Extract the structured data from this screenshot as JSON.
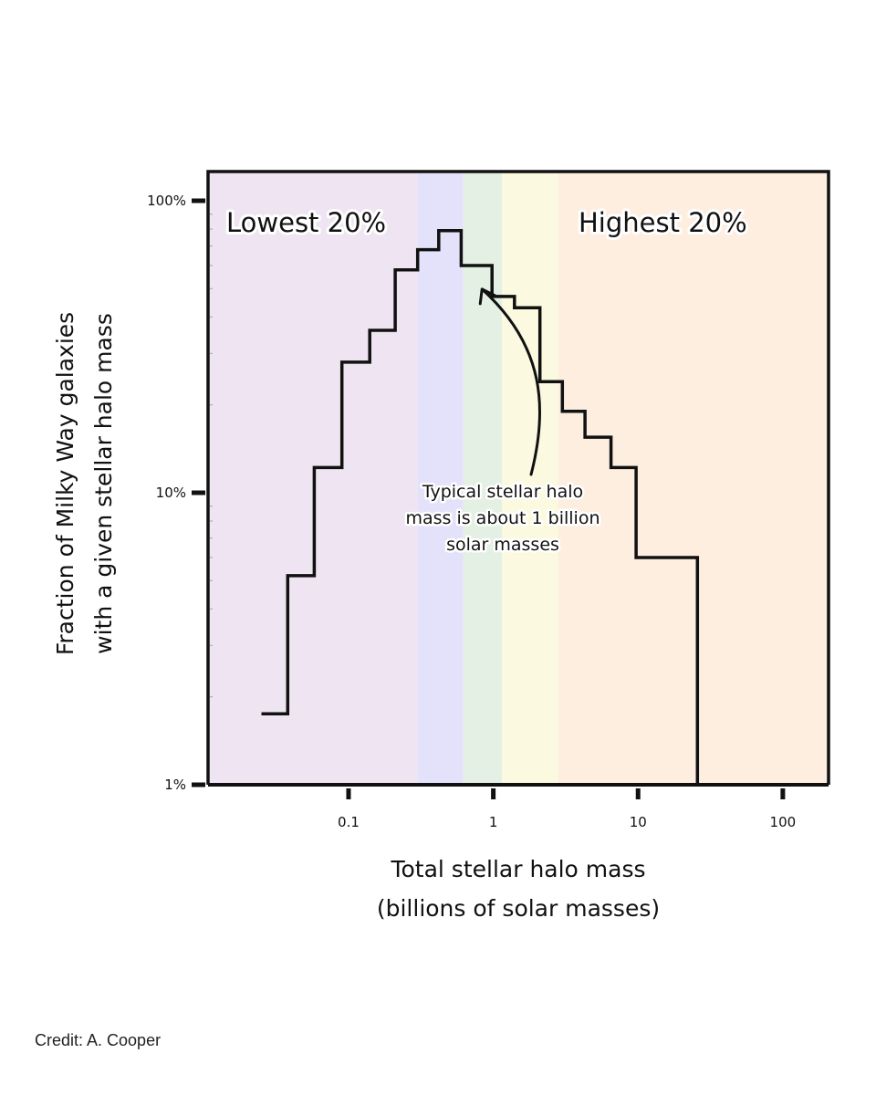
{
  "chart_data": {
    "type": "step",
    "xlabel_lines": [
      "Total stellar halo mass",
      "(billions of solar masses)"
    ],
    "ylabel_lines": [
      "Fraction of Milky Way galaxies",
      "with a given stellar halo mass"
    ],
    "x_scale": "log",
    "y_scale": "log",
    "xlim": [
      0.0107,
      207
    ],
    "ylim": [
      0.01,
      1.0
    ],
    "x_ticks": [
      {
        "value": 0.1,
        "label": "0.1"
      },
      {
        "value": 1,
        "label": "1"
      },
      {
        "value": 10,
        "label": "10"
      },
      {
        "value": 100,
        "label": "100"
      }
    ],
    "y_ticks": [
      {
        "value": 0.01,
        "label": "1%"
      },
      {
        "value": 0.1,
        "label": "10%"
      },
      {
        "value": 1.0,
        "label": "100%"
      }
    ],
    "band_edges": [
      0.0107,
      0.3,
      0.62,
      1.15,
      2.8,
      207
    ],
    "band_colors": [
      "#efe4f2",
      "#e4e2fa",
      "#e3f0e3",
      "#fbfae0",
      "#fdeee0"
    ],
    "step_edges": [
      0.025,
      0.038,
      0.058,
      0.09,
      0.14,
      0.21,
      0.3,
      0.42,
      0.6,
      0.98,
      1.4,
      2.1,
      3.0,
      4.3,
      6.5,
      9.7,
      15.7,
      25.7
    ],
    "step_values": [
      0.0175,
      0.052,
      0.122,
      0.28,
      0.36,
      0.58,
      0.68,
      0.79,
      0.6,
      0.47,
      0.43,
      0.24,
      0.19,
      0.155,
      0.122,
      0.06,
      0.06
    ],
    "step_tail": 0.01,
    "series_color": "#111111",
    "region_labels": {
      "lowest": "Lowest 20%",
      "highest": "Highest 20%"
    },
    "annotation": {
      "lines": [
        "Typical stellar halo",
        "mass is about 1 billion",
        "solar masses"
      ],
      "arrow_target": {
        "x": 0.8,
        "y": 0.52
      }
    }
  },
  "credit": "Credit: A. Cooper"
}
